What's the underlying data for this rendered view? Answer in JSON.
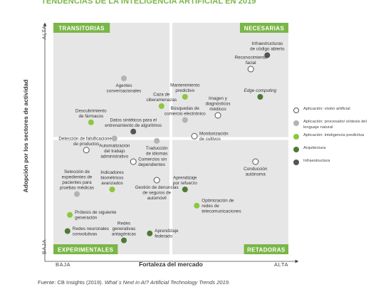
{
  "page_title": "TENDENCIAS DE LA INTELIGENCIA ARTIFICIAL EN 2019",
  "source": {
    "prefix": "Fuente: CB Insights (2019). ",
    "title": "What´s Next in AI? Artificial Technology Trends 2019."
  },
  "colors": {
    "quadrant_bg": "#e6e6e6",
    "header_green": "#7ab648",
    "vision": "#ffffff",
    "nlp": "#b3b3b3",
    "predictive": "#8dc63f",
    "architecture": "#4e7a33",
    "infrastructure": "#555555"
  },
  "chart_data": {
    "type": "scatter",
    "title": "TENDENCIAS DE LA INTELIGENCIA ARTIFICIAL EN 2019",
    "xlabel": "Fortaleza del mercado",
    "ylabel": "Adopción por los sectores de actividad",
    "x_ticks": {
      "low": "BAJA",
      "high": "ALTA"
    },
    "y_ticks": {
      "low": "BAJA",
      "high": "ALTA"
    },
    "xlim": [
      0,
      1
    ],
    "ylim": [
      0,
      1
    ],
    "quadrants": {
      "top_left": "TRANSITORIAS",
      "top_right": "NECESARIAS",
      "bottom_left": "EXPERIMENTALES",
      "bottom_right": "RETADORAS"
    },
    "series": [
      {
        "key": "vision",
        "name": "Aplicación: visión artificial"
      },
      {
        "key": "nlp",
        "name": "Aplicación: procesado/ síntesis del lenguaje natural"
      },
      {
        "key": "predictive",
        "name": "Aplicación: inteligencia predictiva"
      },
      {
        "key": "architecture",
        "name": "Arquitectura"
      },
      {
        "key": "infrastructure",
        "name": "Infraestructura"
      }
    ],
    "points": [
      {
        "label": [
          "Infraestructuras",
          "de código abierto"
        ],
        "x": 0.91,
        "y": 0.86,
        "series": "infrastructure",
        "la": "above"
      },
      {
        "label": [
          "Reconocimiento",
          "facial"
        ],
        "x": 0.84,
        "y": 0.8,
        "series": "vision",
        "la": "above"
      },
      {
        "label": [
          "Agentes",
          "conversacionales"
        ],
        "x": 0.3,
        "y": 0.76,
        "series": "nlp",
        "la": "below"
      },
      {
        "label": [
          "Mantenimiento",
          "predictivo"
        ],
        "x": 0.56,
        "y": 0.68,
        "series": "predictive",
        "la": "above"
      },
      {
        "label": [
          "Edge computing"
        ],
        "x": 0.88,
        "y": 0.68,
        "series": "architecture",
        "la": "above",
        "italic": true
      },
      {
        "label": [
          "Caza de",
          "ciberamenazas"
        ],
        "x": 0.46,
        "y": 0.64,
        "series": "predictive",
        "la": "above"
      },
      {
        "label": [
          "Imagen y",
          "diagnósticos",
          "médicos"
        ],
        "x": 0.7,
        "y": 0.6,
        "series": "vision",
        "la": "above"
      },
      {
        "label": [
          "Búsquedas de",
          "comercio electrónico"
        ],
        "x": 0.56,
        "y": 0.58,
        "series": "nlp",
        "la": "above"
      },
      {
        "label": [
          "Descubrimiento",
          "de fármacos"
        ],
        "x": 0.16,
        "y": 0.57,
        "series": "predictive",
        "la": "above"
      },
      {
        "label": [
          "Datos sintéticos para el",
          "entrenamiento de algoritmos"
        ],
        "x": 0.34,
        "y": 0.53,
        "series": "infrastructure",
        "la": "above"
      },
      {
        "label": [
          "Monitorización",
          "de cultivos"
        ],
        "x": 0.6,
        "y": 0.51,
        "series": "vision",
        "la": "right"
      },
      {
        "label": [
          "Detección de falsificaciones",
          "de productos"
        ],
        "x": 0.14,
        "y": 0.45,
        "series": "vision",
        "la": "above"
      },
      {
        "label": [
          "Automatización",
          "del trabajo",
          "administrativo"
        ],
        "x": 0.26,
        "y": 0.5,
        "series": "nlp",
        "la": "below"
      },
      {
        "label": [
          "Traducción",
          "de idiomas"
        ],
        "x": 0.44,
        "y": 0.49,
        "series": "nlp",
        "la": "below"
      },
      {
        "label": [
          "Comercios sin",
          "dependientes"
        ],
        "x": 0.34,
        "y": 0.4,
        "series": "vision",
        "la": "right"
      },
      {
        "label": [
          "Indicadores",
          "biométricos",
          "avanzados"
        ],
        "x": 0.25,
        "y": 0.28,
        "series": "predictive",
        "la": "above"
      },
      {
        "label": [
          "Selección de",
          "expedientes de",
          "pacientes para",
          "pruebas médicas"
        ],
        "x": 0.1,
        "y": 0.26,
        "series": "nlp",
        "la": "above"
      },
      {
        "label": [
          "Gestión de denuncias",
          "de seguros de",
          "automóvil"
        ],
        "x": 0.44,
        "y": 0.32,
        "series": "vision",
        "la": "below"
      },
      {
        "label": [
          "Aprendizaje",
          "por refuerzo"
        ],
        "x": 0.56,
        "y": 0.28,
        "series": "architecture",
        "la": "above"
      },
      {
        "label": [
          "Conducción",
          "autónoma"
        ],
        "x": 0.86,
        "y": 0.4,
        "series": "vision",
        "la": "below"
      },
      {
        "label": [
          "Optimización de",
          "redes de",
          "telecomunicaciones"
        ],
        "x": 0.61,
        "y": 0.21,
        "series": "predictive",
        "la": "right"
      },
      {
        "label": [
          "Prótesis de siguiente",
          "generación"
        ],
        "x": 0.07,
        "y": 0.17,
        "series": "predictive",
        "la": "right"
      },
      {
        "label": [
          "Redes",
          "generativas",
          "antagónicas"
        ],
        "x": 0.3,
        "y": 0.06,
        "series": "architecture",
        "la": "above"
      },
      {
        "label": [
          "Aprendizaje",
          "federado"
        ],
        "x": 0.41,
        "y": 0.09,
        "series": "architecture",
        "la": "right"
      },
      {
        "label": [
          "Redes neuronales",
          "convolutivas"
        ],
        "x": 0.06,
        "y": 0.1,
        "series": "architecture",
        "la": "right"
      }
    ]
  }
}
